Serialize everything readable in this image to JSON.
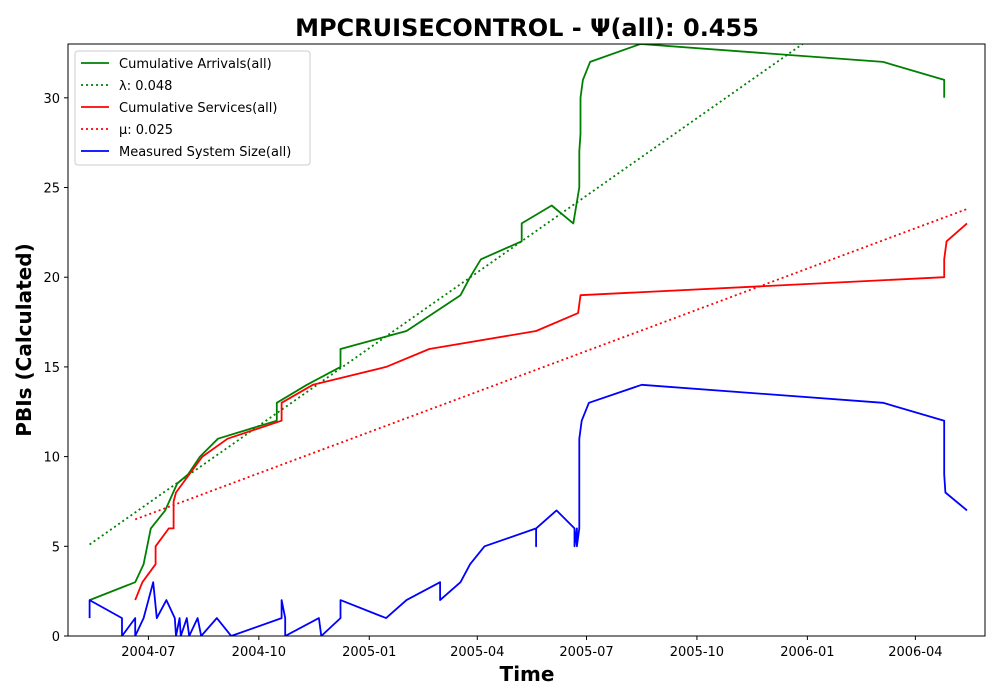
{
  "chart_data": {
    "type": "line",
    "title": "MPCRUISECONTROL -  Ψ(all): 0.455",
    "xlabel": "Time",
    "ylabel": "PBIs (Calculated)",
    "x_ticks": [
      "2004-07",
      "2004-10",
      "2005-01",
      "2005-04",
      "2005-07",
      "2005-10",
      "2006-01",
      "2006-04"
    ],
    "y_ticks": [
      0,
      5,
      10,
      15,
      20,
      25,
      30
    ],
    "xlim": [
      "2004-04-25",
      "2006-05-29"
    ],
    "ylim": [
      0,
      33
    ],
    "grid": false,
    "legend_position": "top-left",
    "series": [
      {
        "name": "Cumulative Arrivals(all)",
        "style": "solid",
        "color": "#008000",
        "points": [
          [
            "2004-05-13",
            2
          ],
          [
            "2004-06-20",
            3
          ],
          [
            "2004-06-27",
            4
          ],
          [
            "2004-07-03",
            6
          ],
          [
            "2004-07-15",
            7
          ],
          [
            "2004-07-25",
            8.5
          ],
          [
            "2004-08-03",
            9
          ],
          [
            "2004-08-13",
            10
          ],
          [
            "2004-08-28",
            11
          ],
          [
            "2004-10-16",
            12
          ],
          [
            "2004-10-16",
            13
          ],
          [
            "2004-11-10",
            14
          ],
          [
            "2004-12-08",
            15
          ],
          [
            "2004-12-08",
            16
          ],
          [
            "2005-02-01",
            17
          ],
          [
            "2005-03-18",
            19
          ],
          [
            "2005-03-26",
            20
          ],
          [
            "2005-04-04",
            21
          ],
          [
            "2005-05-08",
            22
          ],
          [
            "2005-05-08",
            23
          ],
          [
            "2005-06-02",
            24
          ],
          [
            "2005-06-20",
            23
          ],
          [
            "2005-06-25",
            25
          ],
          [
            "2005-06-25",
            27
          ],
          [
            "2005-06-26",
            28
          ],
          [
            "2005-06-26",
            30
          ],
          [
            "2005-06-28",
            31
          ],
          [
            "2005-07-04",
            32
          ],
          [
            "2005-08-15",
            33
          ],
          [
            "2006-03-05",
            32
          ],
          [
            "2006-04-25",
            31
          ],
          [
            "2006-04-25",
            30
          ]
        ]
      },
      {
        "name": "λ: 0.048",
        "style": "dotted",
        "color": "#008000",
        "points": [
          [
            "2004-05-13",
            5.1
          ],
          [
            "2005-12-28",
            33
          ]
        ]
      },
      {
        "name": "Cumulative Services(all)",
        "style": "solid",
        "color": "#ff0000",
        "points": [
          [
            "2004-06-20",
            2
          ],
          [
            "2004-06-26",
            3
          ],
          [
            "2004-07-07",
            4
          ],
          [
            "2004-07-07",
            5
          ],
          [
            "2004-07-18",
            6
          ],
          [
            "2004-07-22",
            6
          ],
          [
            "2004-07-22",
            7.5
          ],
          [
            "2004-07-24",
            8
          ],
          [
            "2004-08-04",
            9
          ],
          [
            "2004-08-15",
            10
          ],
          [
            "2004-09-05",
            11
          ],
          [
            "2004-10-20",
            12
          ],
          [
            "2004-10-20",
            13
          ],
          [
            "2004-11-15",
            14
          ],
          [
            "2005-01-15",
            15
          ],
          [
            "2005-02-20",
            16
          ],
          [
            "2005-05-20",
            17
          ],
          [
            "2005-06-24",
            18
          ],
          [
            "2005-06-26",
            19
          ],
          [
            "2006-04-25",
            20
          ],
          [
            "2006-04-25",
            21
          ],
          [
            "2006-04-27",
            22
          ],
          [
            "2006-05-14",
            23
          ]
        ]
      },
      {
        "name": "μ: 0.025",
        "style": "dotted",
        "color": "#ff0000",
        "points": [
          [
            "2004-06-20",
            6.5
          ],
          [
            "2006-05-14",
            23.8
          ]
        ]
      },
      {
        "name": "Measured System Size(all)",
        "style": "solid",
        "color": "#0000ff",
        "points": [
          [
            "2004-05-13",
            1
          ],
          [
            "2004-05-13",
            2
          ],
          [
            "2004-06-09",
            1
          ],
          [
            "2004-06-09",
            0
          ],
          [
            "2004-06-20",
            1
          ],
          [
            "2004-06-20",
            0
          ],
          [
            "2004-06-27",
            1
          ],
          [
            "2004-07-05",
            3
          ],
          [
            "2004-07-08",
            1
          ],
          [
            "2004-07-16",
            2
          ],
          [
            "2004-07-23",
            1
          ],
          [
            "2004-07-24",
            0
          ],
          [
            "2004-07-27",
            1
          ],
          [
            "2004-07-28",
            0
          ],
          [
            "2004-08-02",
            1
          ],
          [
            "2004-08-04",
            0
          ],
          [
            "2004-08-11",
            1
          ],
          [
            "2004-08-14",
            0
          ],
          [
            "2004-08-27",
            1
          ],
          [
            "2004-09-08",
            0
          ],
          [
            "2004-10-20",
            1
          ],
          [
            "2004-10-20",
            2
          ],
          [
            "2004-10-23",
            1
          ],
          [
            "2004-10-23",
            0
          ],
          [
            "2004-11-20",
            1
          ],
          [
            "2004-11-22",
            0
          ],
          [
            "2004-12-08",
            1
          ],
          [
            "2004-12-08",
            2
          ],
          [
            "2005-01-15",
            1
          ],
          [
            "2005-02-01",
            2
          ],
          [
            "2005-03-01",
            3
          ],
          [
            "2005-03-01",
            2
          ],
          [
            "2005-03-18",
            3
          ],
          [
            "2005-03-26",
            4
          ],
          [
            "2005-04-07",
            5
          ],
          [
            "2005-05-20",
            6
          ],
          [
            "2005-05-20",
            5
          ],
          [
            "2005-05-20",
            6
          ],
          [
            "2005-06-06",
            7
          ],
          [
            "2005-06-21",
            6
          ],
          [
            "2005-06-21",
            5
          ],
          [
            "2005-06-23",
            6
          ],
          [
            "2005-06-23",
            5
          ],
          [
            "2005-06-25",
            6
          ],
          [
            "2005-06-25",
            8
          ],
          [
            "2005-06-25",
            11
          ],
          [
            "2005-06-27",
            12
          ],
          [
            "2005-07-03",
            13
          ],
          [
            "2005-08-16",
            14
          ],
          [
            "2006-03-05",
            13
          ],
          [
            "2006-04-25",
            12
          ],
          [
            "2006-04-25",
            9
          ],
          [
            "2006-04-26",
            8
          ],
          [
            "2006-05-14",
            7
          ]
        ]
      }
    ]
  }
}
